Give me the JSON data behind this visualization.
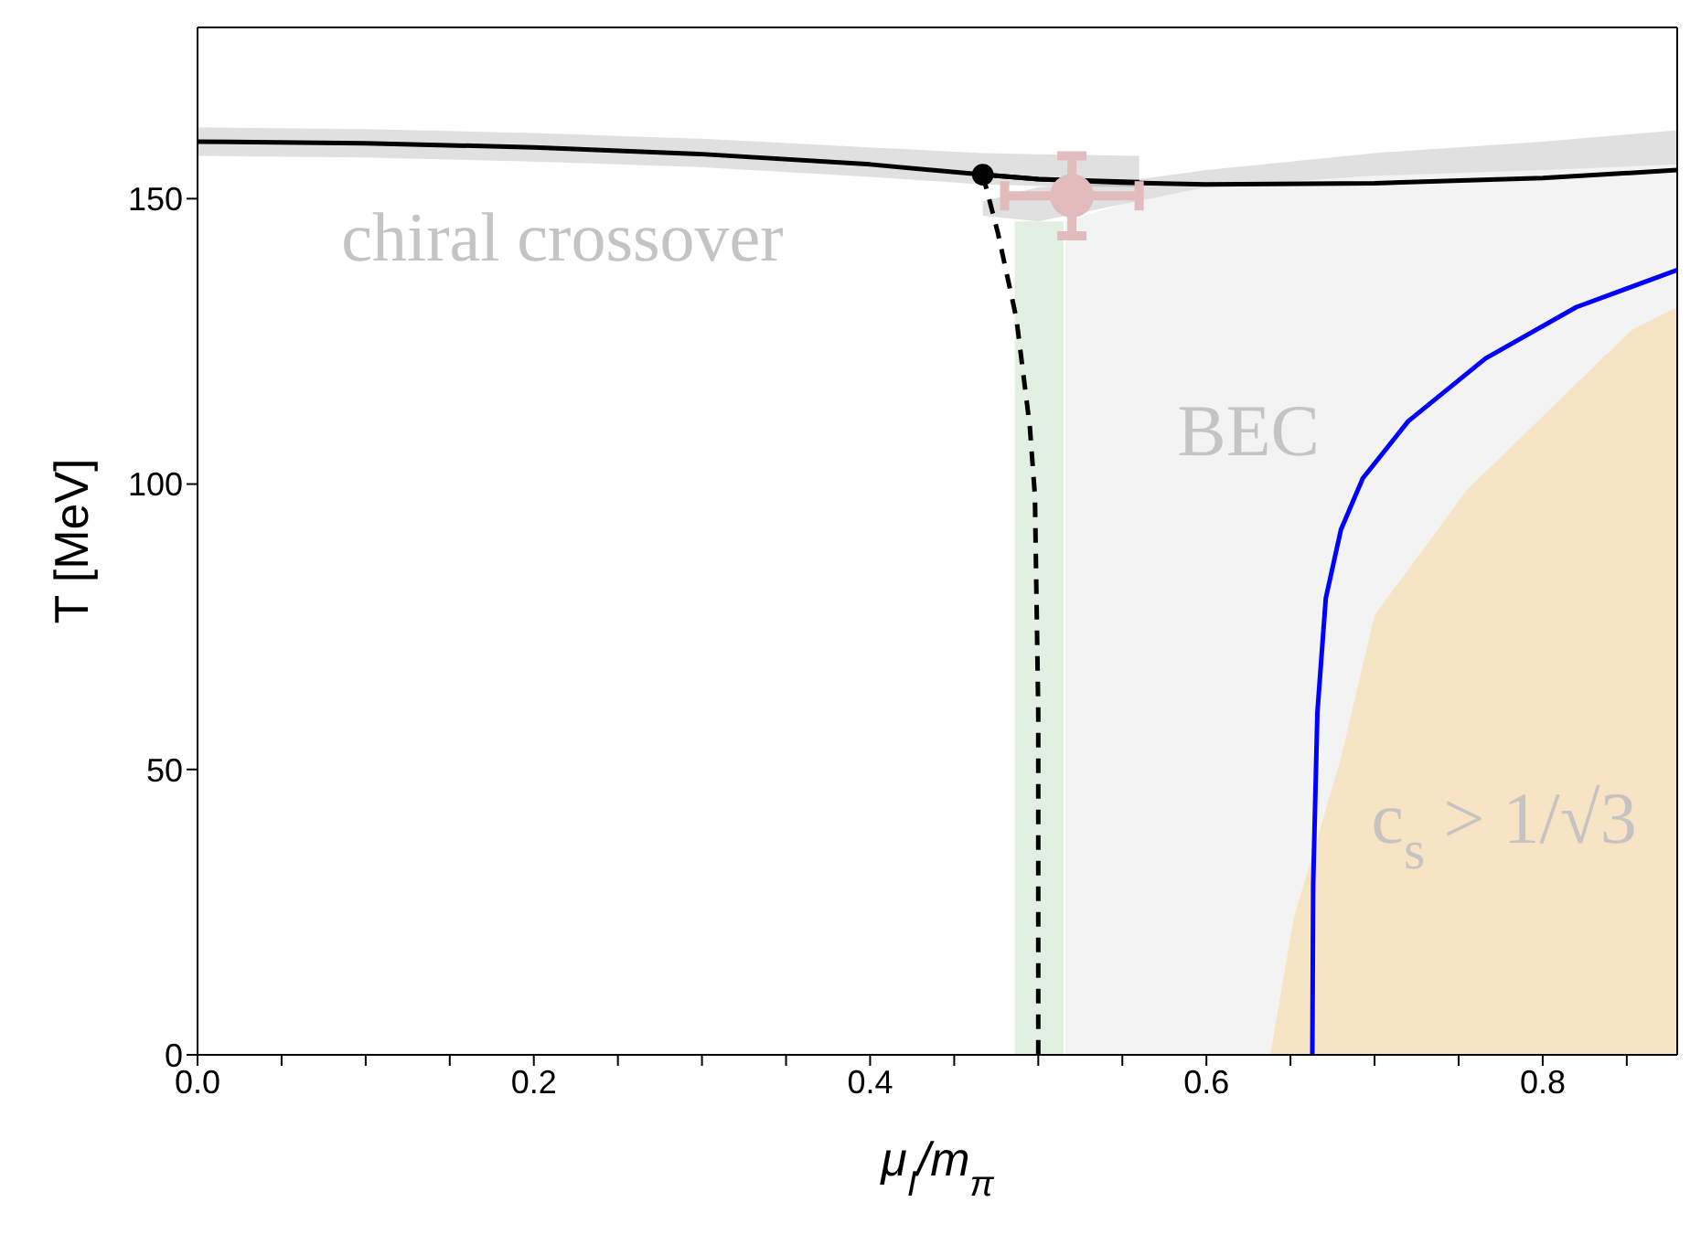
{
  "chart_data": {
    "type": "line",
    "xlabel": "μ$_{I}$/m$_{π}$",
    "ylabel": "T [MeV]",
    "xlim": [
      0,
      0.88
    ],
    "ylim": [
      0,
      180
    ],
    "xticks": [
      {
        "value": 0,
        "label": "0.0"
      },
      {
        "value": 0.05,
        "label": null
      },
      {
        "value": 0.1,
        "label": null
      },
      {
        "value": 0.15,
        "label": null
      },
      0.2,
      {
        "value": 0.25,
        "label": null
      },
      {
        "value": 0.3,
        "label": null
      },
      {
        "value": 0.35,
        "label": null
      },
      0.4,
      {
        "value": 0.45,
        "label": null
      },
      {
        "value": 0.5,
        "label": null
      },
      {
        "value": 0.55,
        "label": null
      },
      0.6,
      {
        "value": 0.65,
        "label": null
      },
      {
        "value": 0.7,
        "label": null
      },
      {
        "value": 0.75,
        "label": null
      },
      0.8,
      {
        "value": 0.85,
        "label": null
      }
    ],
    "yticks": [
      0,
      50,
      100,
      150
    ],
    "grid": false,
    "legend": false,
    "series": [
      {
        "type": "area",
        "color": "#dcdcdc",
        "x": [
          0.516,
          0.55,
          0.6,
          0.7,
          0.8,
          0.88
        ],
        "values": [
          146,
          149,
          152,
          154,
          155,
          156
        ]
      },
      {
        "type": "area",
        "color": "#a8d5a8",
        "x": [
          0.486,
          0.515
        ],
        "values": [
          146,
          146
        ]
      },
      {
        "type": "area",
        "color": "#ffc870",
        "x": [
          0.638,
          0.652,
          0.68,
          0.7,
          0.755,
          0.853,
          0.88
        ],
        "values": [
          0,
          24,
          52,
          77,
          99,
          127,
          131
        ]
      },
      {
        "color": "#000000",
        "line_style": "solid",
        "marker": "none",
        "x": [
          0,
          0.1,
          0.2,
          0.3,
          0.4,
          0.467,
          0.5,
          0.56
        ],
        "values": [
          160,
          159.7,
          159,
          157.8,
          156,
          154.2,
          153.4,
          152.9
        ],
        "lower": [
          157.5,
          157.2,
          156.5,
          155.5,
          153.8,
          152.5,
          152.2,
          152
        ],
        "upper": [
          162.5,
          162.2,
          161.5,
          160.5,
          159,
          158,
          157.8,
          157.5
        ]
      },
      {
        "color": "#000000",
        "line_style": "solid",
        "marker": "none",
        "x": [
          0.467,
          0.5,
          0.55,
          0.6,
          0.7,
          0.8,
          0.88
        ],
        "values": [
          154.2,
          153.4,
          152.8,
          152.5,
          152.7,
          153.6,
          155
        ],
        "lower": [
          147,
          146,
          149,
          152,
          154,
          155,
          156
        ],
        "upper": [
          149.5,
          152,
          153,
          155,
          158,
          160,
          162
        ]
      },
      {
        "type": "line",
        "color": "#000000",
        "line_style": "dashed",
        "marker": "none",
        "x": [
          0.467,
          0.476,
          0.487,
          0.495,
          0.498,
          0.5,
          0.5
        ],
        "values": [
          154.2,
          144,
          129,
          110,
          98,
          60,
          0
        ]
      },
      {
        "type": "line",
        "color": "#0000ff",
        "line_style": "solid",
        "marker": "none",
        "x": [
          0.663,
          0.6635,
          0.666,
          0.671,
          0.68,
          0.693,
          0.72,
          0.766,
          0.82,
          0.88
        ],
        "values": [
          0,
          30,
          60,
          80,
          92,
          101,
          111,
          122,
          131,
          137.5
        ]
      },
      {
        "type": "scatter",
        "color": "#000000",
        "marker": "circle",
        "x": [
          0.467
        ],
        "values": [
          154.2
        ]
      },
      {
        "type": "scatter",
        "color": "#e2bcbc",
        "marker": "circle",
        "x": [
          0.52
        ],
        "values": [
          150.5
        ],
        "errors": [
          7
        ],
        "xerrors": [
          0.04
        ]
      }
    ],
    "annotations": [
      "chiral crossover",
      "BEC",
      "c$_{s}$ > 1/√3"
    ]
  }
}
